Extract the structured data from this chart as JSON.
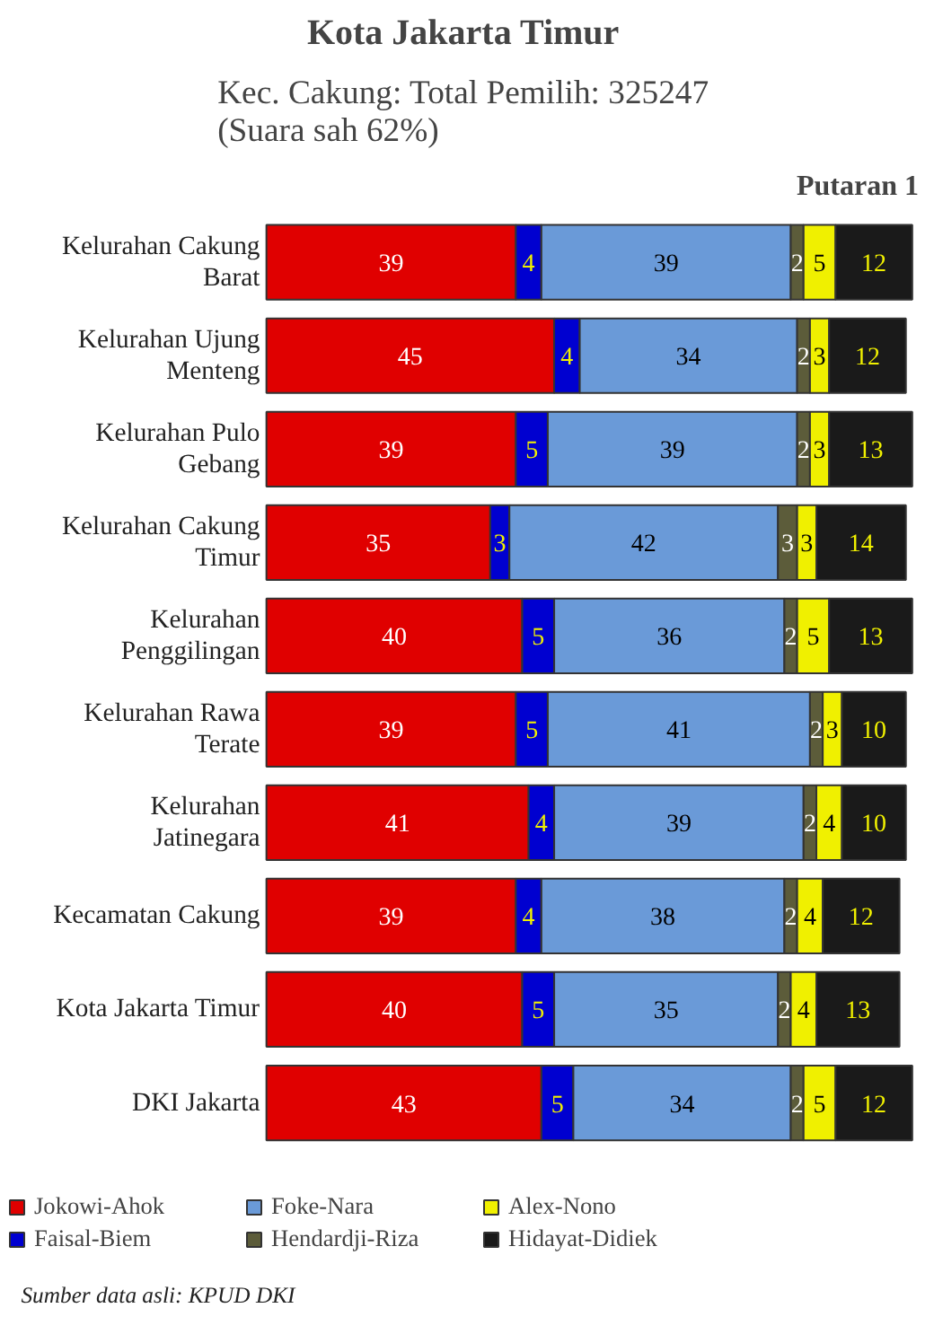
{
  "chart_data": {
    "type": "bar",
    "orientation": "horizontal",
    "stacked": true,
    "title": "Kota Jakarta Timur",
    "subtitle": "Kec. Cakung: Total Pemilih: 325247\n(Suara sah 62%)",
    "annotations": [
      "Putaran 1",
      "Sumber data asli: KPUD DKI"
    ],
    "categories": [
      "Kelurahan Cakung\nBarat",
      "Kelurahan Ujung\nMenteng",
      "Kelurahan Pulo\nGebang",
      "Kelurahan Cakung\nTimur",
      "Kelurahan\nPenggilingan",
      "Kelurahan Rawa\nTerate",
      "Kelurahan\nJatinegara",
      "Kecamatan Cakung",
      "Kota Jakarta Timur",
      "DKI Jakarta"
    ],
    "series": [
      {
        "name": "Jokowi-Ahok",
        "color": "#e00000",
        "values": [
          39,
          45,
          39,
          35,
          40,
          39,
          41,
          39,
          40,
          43
        ]
      },
      {
        "name": "Faisal-Biem",
        "color": "#0000d0",
        "values": [
          4,
          4,
          5,
          3,
          5,
          5,
          4,
          4,
          5,
          5
        ]
      },
      {
        "name": "Foke-Nara",
        "color": "#6a9ad8",
        "values": [
          39,
          34,
          39,
          42,
          36,
          41,
          39,
          38,
          35,
          34
        ]
      },
      {
        "name": "Hendardji-Riza",
        "color": "#5c5c3a",
        "values": [
          2,
          2,
          2,
          3,
          2,
          2,
          2,
          2,
          2,
          2
        ]
      },
      {
        "name": "Alex-Nono",
        "color": "#f0f000",
        "values": [
          5,
          3,
          3,
          3,
          5,
          3,
          4,
          4,
          4,
          5
        ]
      },
      {
        "name": "Hidayat-Didiek",
        "color": "#1a1a1a",
        "values": [
          12,
          12,
          13,
          14,
          13,
          10,
          10,
          12,
          13,
          12
        ]
      }
    ],
    "xlim": [
      0,
      101
    ],
    "tick_labels": "y",
    "data_labels": true,
    "legend": "bottom",
    "grid": false
  }
}
